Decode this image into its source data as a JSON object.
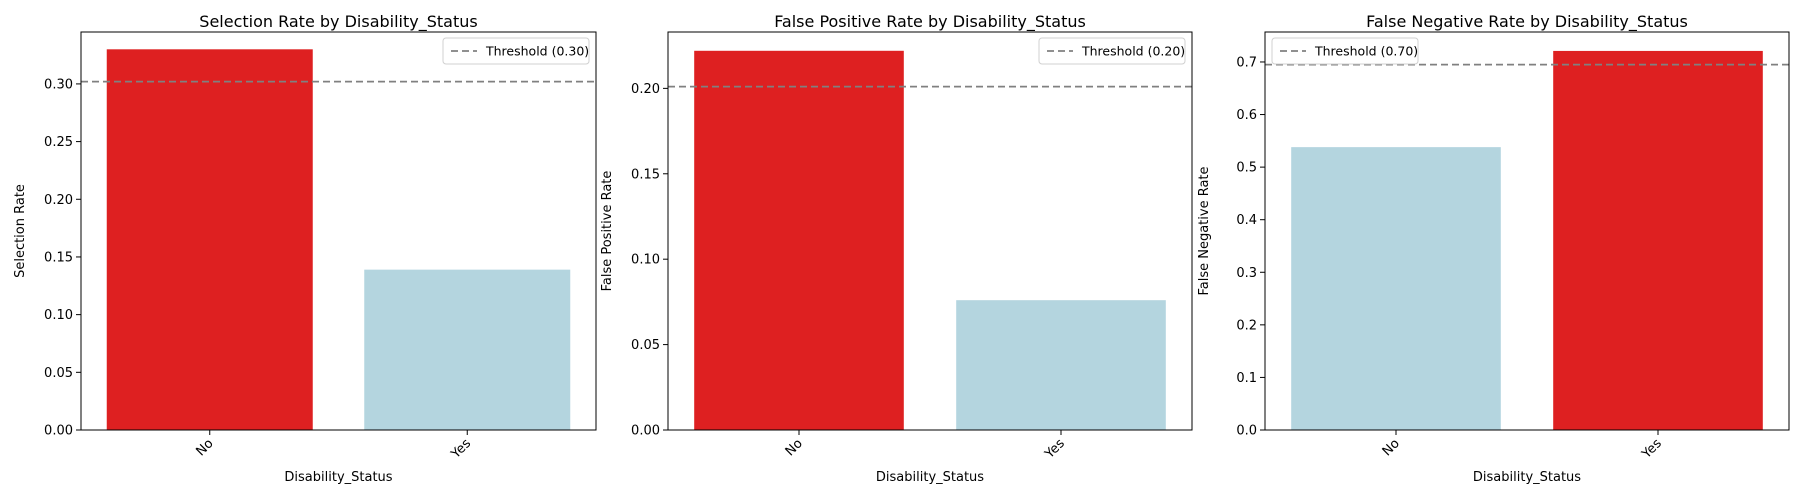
{
  "chart_data": [
    {
      "type": "bar",
      "title": "Selection Rate by Disability_Status",
      "xlabel": "Disability_Status",
      "ylabel": "Selection Rate",
      "categories": [
        "No",
        "Yes"
      ],
      "values": [
        0.33,
        0.139
      ],
      "bar_colors": [
        "#de2021",
        "#b4d5df"
      ],
      "ylim": [
        0,
        0.345
      ],
      "yticks": [
        0.0,
        0.05,
        0.1,
        0.15,
        0.2,
        0.25,
        0.3
      ],
      "ytick_labels": [
        "0.00",
        "0.05",
        "0.10",
        "0.15",
        "0.20",
        "0.25",
        "0.30"
      ],
      "threshold": {
        "value": 0.302,
        "label": "Threshold (0.30)",
        "color": "#808080"
      },
      "legend_position": "top-right",
      "grid": false
    },
    {
      "type": "bar",
      "title": "False Positive Rate by Disability_Status",
      "xlabel": "Disability_Status",
      "ylabel": "False Positive Rate",
      "categories": [
        "No",
        "Yes"
      ],
      "values": [
        0.222,
        0.076
      ],
      "bar_colors": [
        "#de2021",
        "#b4d5df"
      ],
      "ylim": [
        0,
        0.233
      ],
      "yticks": [
        0.0,
        0.05,
        0.1,
        0.15,
        0.2
      ],
      "ytick_labels": [
        "0.00",
        "0.05",
        "0.10",
        "0.15",
        "0.20"
      ],
      "threshold": {
        "value": 0.201,
        "label": "Threshold (0.20)",
        "color": "#808080"
      },
      "legend_position": "top-right",
      "grid": false
    },
    {
      "type": "bar",
      "title": "False Negative Rate by Disability_Status",
      "xlabel": "Disability_Status",
      "ylabel": "False Negative Rate",
      "categories": [
        "No",
        "Yes"
      ],
      "values": [
        0.538,
        0.721
      ],
      "bar_colors": [
        "#b4d5df",
        "#de2021"
      ],
      "ylim": [
        0,
        0.757
      ],
      "yticks": [
        0.0,
        0.1,
        0.2,
        0.3,
        0.4,
        0.5,
        0.6,
        0.7
      ],
      "ytick_labels": [
        "0.0",
        "0.1",
        "0.2",
        "0.3",
        "0.4",
        "0.5",
        "0.6",
        "0.7"
      ],
      "threshold": {
        "value": 0.695,
        "label": "Threshold (0.70)",
        "color": "#808080"
      },
      "legend_position": "top-left",
      "grid": false
    }
  ]
}
